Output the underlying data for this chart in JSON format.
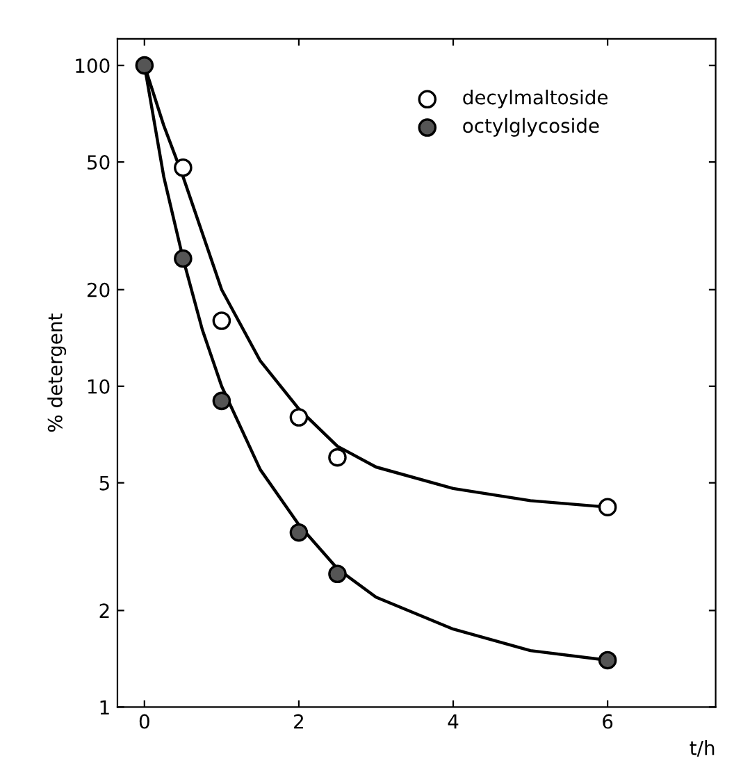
{
  "chart_data": {
    "type": "scatter",
    "xlabel": "t/h",
    "ylabel": "% detergent",
    "log": "y",
    "xlim": [
      -0.35,
      7.4
    ],
    "xticks": [
      0,
      2,
      4,
      6
    ],
    "ylim": [
      1,
      121
    ],
    "yticks": [
      1,
      2,
      5,
      10,
      20,
      50,
      100
    ],
    "legend": "top right",
    "grid": false,
    "series": [
      {
        "name": "decylmaltoside",
        "marker": "circle",
        "color": "#ffffff",
        "x": [
          0.5,
          1,
          2,
          2.5,
          6
        ],
        "values": [
          48,
          16,
          8,
          6,
          4.2
        ]
      },
      {
        "name": "octylglycoside",
        "marker": "circle",
        "color": "#555555",
        "x": [
          0,
          0.5,
          1,
          2,
          2.5,
          6
        ],
        "values": [
          100,
          25,
          9,
          3.5,
          2.6,
          1.4
        ]
      },
      {
        "type": "line",
        "marker": "none",
        "color": "#000000",
        "x": [
          0,
          0.25,
          0.5,
          0.75,
          1,
          1.5,
          2,
          2.5,
          3,
          4,
          5,
          6
        ],
        "values": [
          100,
          65,
          45,
          30,
          20,
          12,
          8.5,
          6.5,
          5.6,
          4.8,
          4.4,
          4.2
        ]
      },
      {
        "type": "line",
        "marker": "none",
        "color": "#000000",
        "x": [
          0,
          0.25,
          0.5,
          0.75,
          1,
          1.5,
          2,
          2.5,
          3,
          4,
          5,
          6
        ],
        "values": [
          100,
          45,
          25,
          15,
          10,
          5.5,
          3.7,
          2.7,
          2.2,
          1.75,
          1.5,
          1.4
        ]
      }
    ]
  }
}
